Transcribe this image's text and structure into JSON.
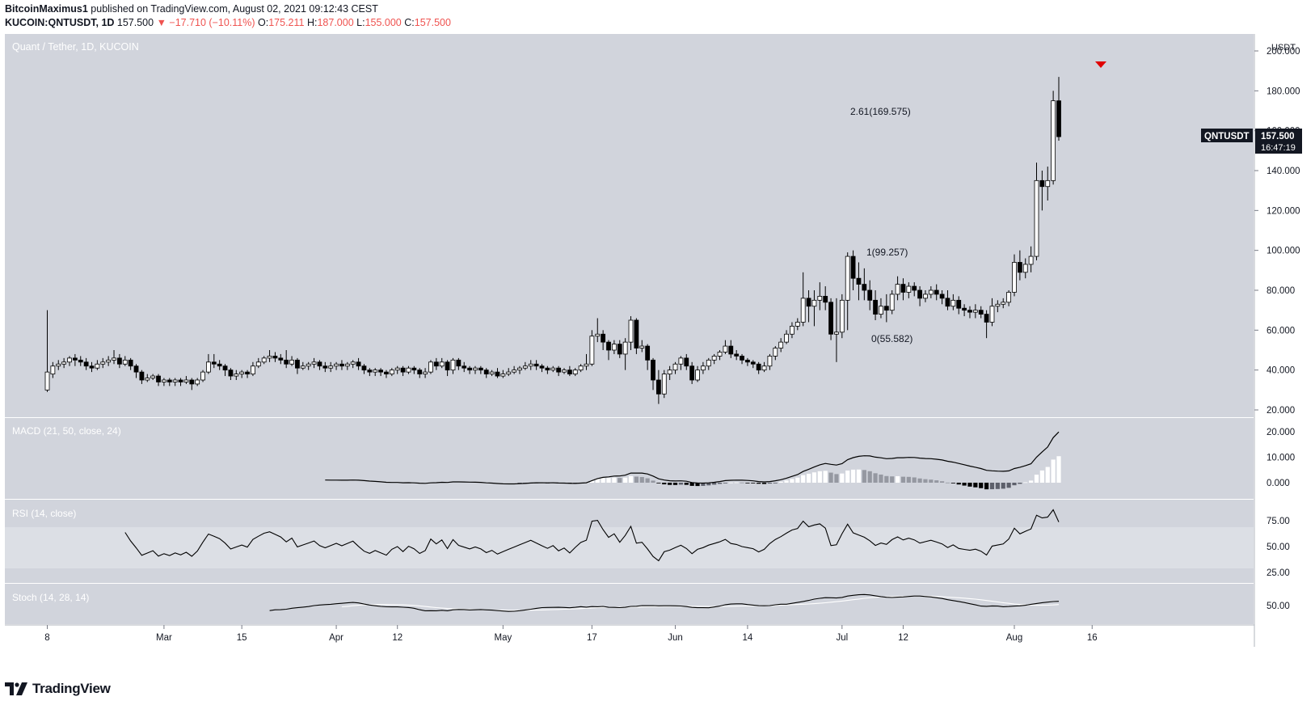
{
  "header": {
    "author": "BitcoinMaximus1",
    "published_text": "published on TradingView.com, August 02, 2021 09:12:43 CEST",
    "symbol_line": "KUCOIN:QNTUSDT, 1D",
    "last_price": "157.500",
    "change": "▼ −17.710 (−10.11%)",
    "o_label": "O:",
    "o_value": "175.211",
    "h_label": "H:",
    "h_value": "187.000",
    "l_label": "L:",
    "l_value": "155.000",
    "c_label": "C:",
    "c_value": "157.500"
  },
  "chart": {
    "pair_label": "Quant / Tether, 1D, KUCOIN",
    "currency": "USDT",
    "ticker_badge": "QNTUSDT",
    "price_badge": "157.500",
    "countdown": "16:47:19",
    "price_ticks": [
      "200.000",
      "180.000",
      "160.000",
      "140.000",
      "120.000",
      "100.000",
      "80.000",
      "60.000",
      "40.000",
      "20.000"
    ],
    "fib_top": "2.61(169.575)",
    "fib_mid": "1(99.257)",
    "fib_low": "0(55.582)",
    "colors": {
      "panel_bg": "#d1d4dc",
      "candle_up": "#ffffff",
      "candle_down": "#000000",
      "signal": "#e00000"
    }
  },
  "macd": {
    "label": "MACD (21, 50, close, 24)",
    "ticks": [
      "20.000",
      "10.000",
      "0.000"
    ]
  },
  "rsi": {
    "label": "RSI (14, close)",
    "ticks": [
      "75.00",
      "50.00",
      "25.00"
    ]
  },
  "stoch": {
    "label": "Stoch (14, 28, 14)",
    "ticks": [
      "50.00"
    ]
  },
  "time_axis": [
    "8",
    "Mar",
    "15",
    "Apr",
    "12",
    "May",
    "17",
    "Jun",
    "14",
    "Jul",
    "12",
    "Aug",
    "16"
  ],
  "chart_data": {
    "type": "candlestick",
    "series_name": "QNTUSDT",
    "start_date": "2021-02-08",
    "ohlc": [
      [
        30,
        39,
        29,
        70
      ],
      [
        38,
        42,
        36,
        44
      ],
      [
        42,
        43,
        40,
        45
      ],
      [
        43,
        44,
        41,
        46
      ],
      [
        44,
        46,
        42,
        47
      ],
      [
        46,
        45,
        42,
        48
      ],
      [
        45,
        44,
        42,
        47
      ],
      [
        44,
        42,
        40,
        46
      ],
      [
        42,
        41,
        39,
        44
      ],
      [
        41,
        43,
        40,
        45
      ],
      [
        43,
        44,
        41,
        46
      ],
      [
        44,
        45,
        42,
        47
      ],
      [
        45,
        46,
        43,
        50
      ],
      [
        46,
        43,
        41,
        48
      ],
      [
        43,
        45,
        42,
        47
      ],
      [
        45,
        42,
        40,
        46
      ],
      [
        42,
        39,
        36,
        43
      ],
      [
        39,
        35,
        33,
        40
      ],
      [
        35,
        36,
        34,
        38
      ],
      [
        36,
        37,
        35,
        38
      ],
      [
        37,
        34,
        32,
        38
      ],
      [
        34,
        35,
        32,
        36
      ],
      [
        35,
        34,
        32,
        36
      ],
      [
        34,
        35,
        32,
        36
      ],
      [
        35,
        34,
        32,
        36
      ],
      [
        34,
        35,
        33,
        37
      ],
      [
        35,
        33,
        30,
        36
      ],
      [
        33,
        35,
        32,
        36
      ],
      [
        35,
        39,
        34,
        40
      ],
      [
        39,
        44,
        38,
        48
      ],
      [
        44,
        43,
        41,
        48
      ],
      [
        43,
        42,
        40,
        45
      ],
      [
        42,
        40,
        37,
        43
      ],
      [
        40,
        37,
        35,
        41
      ],
      [
        37,
        38,
        35,
        40
      ],
      [
        38,
        39,
        36,
        40
      ],
      [
        39,
        38,
        36,
        40
      ],
      [
        38,
        42,
        37,
        44
      ],
      [
        42,
        44,
        41,
        46
      ],
      [
        44,
        46,
        43,
        47
      ],
      [
        46,
        47,
        44,
        50
      ],
      [
        47,
        46,
        44,
        49
      ],
      [
        46,
        45,
        43,
        48
      ],
      [
        45,
        43,
        41,
        50
      ],
      [
        43,
        45,
        42,
        47
      ],
      [
        45,
        41,
        38,
        46
      ],
      [
        41,
        42,
        40,
        44
      ],
      [
        42,
        43,
        40,
        44
      ],
      [
        43,
        44,
        41,
        46
      ],
      [
        44,
        42,
        40,
        45
      ],
      [
        42,
        41,
        39,
        44
      ],
      [
        41,
        42,
        39,
        44
      ],
      [
        42,
        43,
        40,
        44
      ],
      [
        43,
        42,
        40,
        45
      ],
      [
        42,
        43,
        40,
        44
      ],
      [
        43,
        44,
        41,
        45
      ],
      [
        44,
        42,
        40,
        46
      ],
      [
        42,
        40,
        38,
        43
      ],
      [
        40,
        39,
        37,
        41
      ],
      [
        39,
        40,
        37,
        41
      ],
      [
        40,
        39,
        37,
        41
      ],
      [
        39,
        38,
        36,
        40
      ],
      [
        38,
        40,
        37,
        41
      ],
      [
        40,
        41,
        38,
        42
      ],
      [
        41,
        39,
        37,
        42
      ],
      [
        39,
        41,
        38,
        42
      ],
      [
        41,
        40,
        38,
        42
      ],
      [
        40,
        38,
        36,
        41
      ],
      [
        38,
        39,
        36,
        41
      ],
      [
        39,
        44,
        38,
        45
      ],
      [
        44,
        42,
        40,
        46
      ],
      [
        42,
        44,
        41,
        46
      ],
      [
        44,
        40,
        37,
        45
      ],
      [
        40,
        45,
        38,
        46
      ],
      [
        45,
        42,
        40,
        46
      ],
      [
        42,
        41,
        39,
        44
      ],
      [
        41,
        40,
        38,
        42
      ],
      [
        40,
        41,
        38,
        42
      ],
      [
        41,
        40,
        38,
        42
      ],
      [
        40,
        38,
        36,
        41
      ],
      [
        38,
        39,
        37,
        40
      ],
      [
        39,
        37,
        36,
        41
      ],
      [
        37,
        38,
        36,
        40
      ],
      [
        38,
        39,
        37,
        41
      ],
      [
        39,
        40,
        38,
        42
      ],
      [
        40,
        41,
        38,
        42
      ],
      [
        41,
        42,
        40,
        44
      ],
      [
        42,
        43,
        40,
        45
      ],
      [
        43,
        42,
        40,
        45
      ],
      [
        42,
        41,
        39,
        43
      ],
      [
        41,
        40,
        38,
        42
      ],
      [
        40,
        41,
        39,
        42
      ],
      [
        41,
        39,
        37,
        42
      ],
      [
        39,
        40,
        38,
        41
      ],
      [
        40,
        38,
        37,
        42
      ],
      [
        38,
        40,
        37,
        41
      ],
      [
        40,
        42,
        39,
        43
      ],
      [
        42,
        43,
        40,
        48
      ],
      [
        43,
        57,
        42,
        60
      ],
      [
        57,
        58,
        54,
        66
      ],
      [
        58,
        54,
        50,
        60
      ],
      [
        54,
        50,
        45,
        55
      ],
      [
        50,
        53,
        48,
        55
      ],
      [
        53,
        48,
        46,
        55
      ],
      [
        48,
        54,
        40,
        56
      ],
      [
        54,
        65,
        50,
        67
      ],
      [
        65,
        51,
        48,
        66
      ],
      [
        51,
        52,
        49,
        55
      ],
      [
        52,
        45,
        40,
        53
      ],
      [
        45,
        35,
        30,
        46
      ],
      [
        35,
        28,
        23,
        40
      ],
      [
        28,
        38,
        26,
        40
      ],
      [
        38,
        40,
        35,
        42
      ],
      [
        40,
        43,
        38,
        44
      ],
      [
        43,
        46,
        40,
        47
      ],
      [
        46,
        42,
        40,
        48
      ],
      [
        42,
        35,
        33,
        44
      ],
      [
        35,
        40,
        34,
        42
      ],
      [
        40,
        42,
        38,
        44
      ],
      [
        42,
        45,
        40,
        46
      ],
      [
        45,
        47,
        43,
        48
      ],
      [
        47,
        49,
        45,
        50
      ],
      [
        49,
        52,
        48,
        55
      ],
      [
        52,
        48,
        46,
        55
      ],
      [
        48,
        47,
        45,
        50
      ],
      [
        47,
        45,
        43,
        48
      ],
      [
        45,
        44,
        42,
        46
      ],
      [
        44,
        43,
        41,
        45
      ],
      [
        43,
        40,
        38,
        44
      ],
      [
        40,
        42,
        39,
        44
      ],
      [
        42,
        47,
        40,
        48
      ],
      [
        47,
        51,
        45,
        52
      ],
      [
        51,
        54,
        49,
        56
      ],
      [
        54,
        58,
        53,
        60
      ],
      [
        58,
        62,
        56,
        64
      ],
      [
        62,
        64,
        60,
        66
      ],
      [
        64,
        76,
        62,
        89
      ],
      [
        76,
        72,
        64,
        80
      ],
      [
        72,
        75,
        62,
        80
      ],
      [
        75,
        77,
        70,
        84
      ],
      [
        77,
        74,
        70,
        82
      ],
      [
        74,
        58,
        55,
        76
      ],
      [
        58,
        59,
        44,
        76
      ],
      [
        59,
        75,
        56,
        78
      ],
      [
        75,
        97,
        60,
        99
      ],
      [
        97,
        86,
        80,
        100
      ],
      [
        86,
        83,
        75,
        94
      ],
      [
        83,
        80,
        75,
        91
      ],
      [
        80,
        75,
        70,
        85
      ],
      [
        75,
        68,
        65,
        80
      ],
      [
        68,
        72,
        66,
        76
      ],
      [
        72,
        70,
        64,
        78
      ],
      [
        70,
        78,
        68,
        80
      ],
      [
        78,
        83,
        75,
        87
      ],
      [
        83,
        79,
        75,
        86
      ],
      [
        79,
        82,
        76,
        84
      ],
      [
        82,
        80,
        77,
        84
      ],
      [
        80,
        76,
        72,
        82
      ],
      [
        76,
        78,
        74,
        80
      ],
      [
        78,
        80,
        76,
        82
      ],
      [
        80,
        78,
        75,
        83
      ],
      [
        78,
        76,
        73,
        80
      ],
      [
        76,
        72,
        70,
        80
      ],
      [
        72,
        75,
        70,
        78
      ],
      [
        75,
        71,
        68,
        77
      ],
      [
        71,
        70,
        67,
        73
      ],
      [
        70,
        69,
        66,
        72
      ],
      [
        69,
        70,
        66,
        73
      ],
      [
        70,
        68,
        66,
        72
      ],
      [
        68,
        64,
        56,
        70
      ],
      [
        64,
        72,
        62,
        76
      ],
      [
        72,
        73,
        69,
        75
      ],
      [
        73,
        74,
        71,
        76
      ],
      [
        74,
        79,
        72,
        80
      ],
      [
        79,
        94,
        77,
        98
      ],
      [
        94,
        89,
        85,
        100
      ],
      [
        89,
        93,
        86,
        96
      ],
      [
        93,
        97,
        89,
        102
      ],
      [
        97,
        135,
        95,
        144
      ],
      [
        135,
        132,
        120,
        140
      ],
      [
        132,
        135,
        125,
        142
      ],
      [
        135,
        175,
        133,
        180
      ],
      [
        175,
        157,
        155,
        187
      ]
    ]
  }
}
